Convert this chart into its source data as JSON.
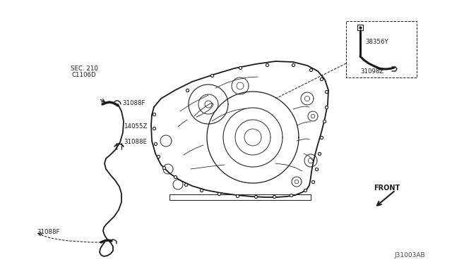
{
  "bg_color": "#ffffff",
  "line_color": "#1a1a1a",
  "diagram_id": "J31003AB",
  "labels": {
    "sec210": "SEC. 210",
    "c1106d": "C1106D",
    "l31088f_top": "31088F",
    "l14055z": "14055Z",
    "l31088e": "31088E",
    "l31088f_bot": "31088F",
    "l38356y": "38356Y",
    "l31098z": "31098Z",
    "front": "FRONT"
  },
  "transmission_outline_x": [
    215,
    222,
    232,
    250,
    270,
    295,
    330,
    360,
    390,
    415,
    435,
    450,
    460,
    465,
    463,
    458,
    453,
    448,
    445,
    443,
    442,
    441,
    440,
    438,
    432,
    422,
    410,
    395,
    375,
    352,
    328,
    305,
    285,
    265,
    250,
    238,
    228,
    220,
    215,
    213,
    213,
    215
  ],
  "transmission_outline_y": [
    155,
    145,
    135,
    122,
    112,
    103,
    94,
    89,
    87,
    88,
    92,
    100,
    112,
    128,
    148,
    168,
    188,
    208,
    225,
    240,
    252,
    258,
    263,
    267,
    272,
    276,
    278,
    279,
    279,
    278,
    276,
    273,
    269,
    263,
    255,
    245,
    232,
    215,
    195,
    175,
    160,
    155
  ],
  "hose_x": [
    155,
    158,
    163,
    170,
    175,
    175,
    170,
    162,
    155,
    150,
    148,
    149,
    153,
    160,
    168,
    173,
    174,
    170,
    162,
    153,
    147,
    143,
    142,
    143,
    147,
    153,
    158,
    162,
    163,
    160,
    155,
    149,
    145,
    143
  ],
  "hose_y": [
    148,
    152,
    160,
    172,
    188,
    205,
    218,
    227,
    232,
    235,
    240,
    247,
    255,
    263,
    272,
    283,
    296,
    308,
    318,
    325,
    330,
    335,
    342,
    350,
    357,
    362,
    365,
    365,
    362,
    358,
    354,
    350,
    346,
    343
  ]
}
